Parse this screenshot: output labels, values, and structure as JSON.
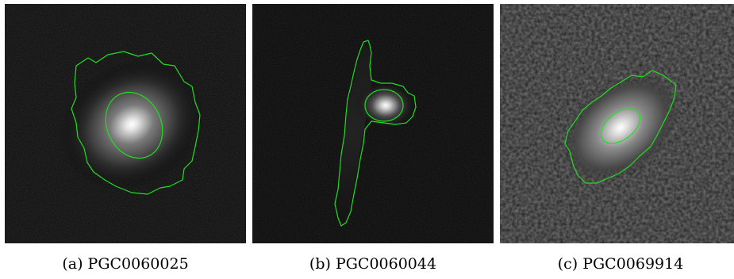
{
  "panels": [
    {
      "id": "a",
      "caption": "(a)  PGC0060025"
    },
    {
      "id": "b",
      "caption": "(b)  PGC0060044"
    },
    {
      "id": "c",
      "caption": "(c)  PGC0069914"
    }
  ],
  "colors": {
    "contour": "#22dd22",
    "background": "#000000",
    "core": "#ffffff"
  }
}
